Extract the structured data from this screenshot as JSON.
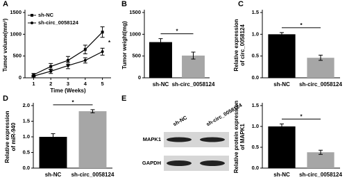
{
  "chart_data": [
    {
      "type": "line",
      "label": "A",
      "x": [
        1,
        2,
        3,
        4,
        5
      ],
      "xlim": [
        0.5,
        5.5
      ],
      "xticks": [
        1,
        2,
        3,
        4,
        5
      ],
      "ylim": [
        0,
        1500
      ],
      "yticks": [
        0,
        500,
        1000,
        1500
      ],
      "xlabel": "Time (Weeks)",
      "ylabel": [
        "Tumor volume(mm³)"
      ],
      "series": [
        {
          "name": "sh-NC",
          "color": "#000000",
          "marker": "square",
          "values": [
            70,
            260,
            400,
            650,
            1050
          ],
          "errors": [
            30,
            70,
            90,
            100,
            120
          ]
        },
        {
          "name": "sh-circ_0058124",
          "color": "#000000",
          "marker": "circle",
          "values": [
            40,
            150,
            280,
            400,
            600
          ],
          "errors": [
            20,
            50,
            70,
            60,
            80
          ]
        }
      ],
      "annotation": "*"
    },
    {
      "type": "bar",
      "label": "B",
      "categories": [
        "sh-NC",
        "sh-circ_0058124"
      ],
      "values": [
        820,
        510
      ],
      "errors": [
        80,
        80
      ],
      "colors": [
        "#000000",
        "#a6a6a6"
      ],
      "ylim": [
        0,
        1500
      ],
      "yticks": [
        0,
        500,
        1000,
        1500
      ],
      "ylabel": [
        "Tumor weight(mg)"
      ],
      "annotation": "*"
    },
    {
      "type": "bar",
      "label": "C",
      "categories": [
        "sh-NC",
        "sh-circ_0058124"
      ],
      "values": [
        1.0,
        0.46
      ],
      "errors": [
        0.04,
        0.06
      ],
      "colors": [
        "#000000",
        "#a6a6a6"
      ],
      "ylim": [
        0,
        1.5
      ],
      "yticks": [
        {
          "value": 0,
          "label": "0.0"
        },
        0.5,
        {
          "value": 1,
          "label": "1.0"
        },
        1.5
      ],
      "ylabel": [
        "Relative expression",
        "of circ_0058124"
      ],
      "annotation": "*"
    },
    {
      "type": "bar",
      "label": "D",
      "categories": [
        "sh-NC",
        "sh-circ_0058124"
      ],
      "values": [
        1.0,
        1.82
      ],
      "errors": [
        0.1,
        0.05
      ],
      "colors": [
        "#000000",
        "#a6a6a6"
      ],
      "ylim": [
        0,
        2
      ],
      "yticks": [
        {
          "value": 0,
          "label": "0.0"
        },
        0.5,
        {
          "value": 1,
          "label": "1.0"
        },
        1.5,
        {
          "value": 2,
          "label": "2.0"
        }
      ],
      "ylabel": [
        "Relative expression",
        "of miR-940"
      ],
      "annotation": "*"
    },
    {
      "type": "bar",
      "label": "E",
      "blot": {
        "lanes": [
          "sh-NC",
          "sh-circ_0058124"
        ],
        "bands": [
          "MAPK1",
          "GAPDH"
        ]
      },
      "categories": [
        "sh-NC",
        "sh-circ_0058124"
      ],
      "values": [
        1.0,
        0.38
      ],
      "errors": [
        0.06,
        0.05
      ],
      "colors": [
        "#000000",
        "#a6a6a6"
      ],
      "ylim": [
        0,
        1.5
      ],
      "yticks": [
        {
          "value": 0,
          "label": "0.0"
        },
        0.5,
        {
          "value": 1,
          "label": "1.0"
        },
        1.5
      ],
      "ylabel": [
        "Relative protein expression",
        "of MAPK1"
      ],
      "annotation": "*"
    }
  ]
}
